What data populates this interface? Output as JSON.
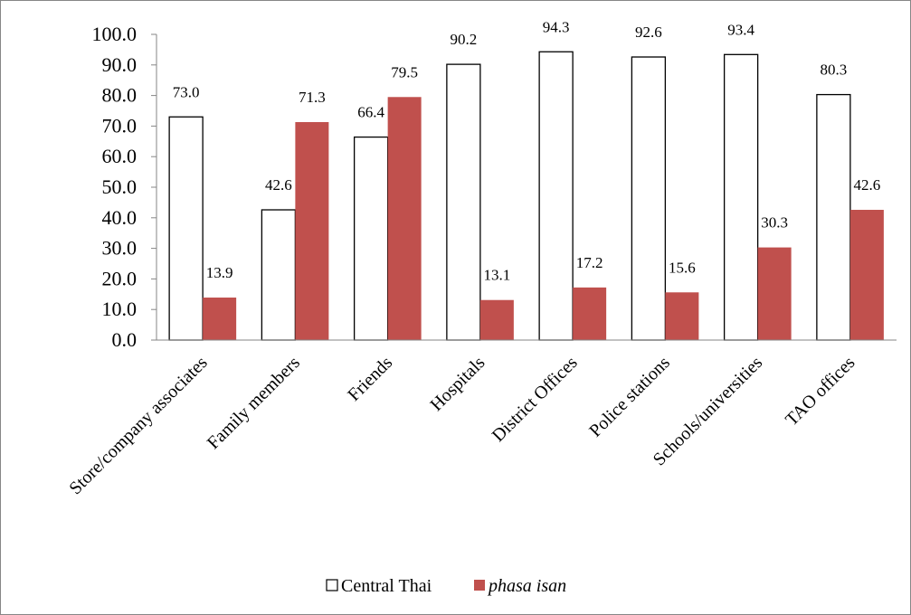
{
  "chart_data": {
    "type": "bar",
    "title": "",
    "xlabel": "",
    "ylabel": "",
    "ylim": [
      0,
      100
    ],
    "y_ticks": [
      "0.0",
      "10.0",
      "20.0",
      "30.0",
      "40.0",
      "50.0",
      "60.0",
      "70.0",
      "80.0",
      "90.0",
      "100.0"
    ],
    "grid": false,
    "legend_position": "bottom",
    "categories": [
      "Store/company associates",
      "Family members",
      "Friends",
      "Hospitals",
      "District Offices",
      "Police stations",
      "Schools/universities",
      "TAO offices"
    ],
    "series": [
      {
        "name": "Central Thai",
        "color": "#ffffff",
        "values": [
          73.0,
          42.6,
          66.4,
          90.2,
          94.3,
          92.6,
          93.4,
          80.3
        ],
        "labels": [
          "73.0",
          "42.6",
          "66.4",
          "90.2",
          "94.3",
          "92.6",
          "93.4",
          "80.3"
        ]
      },
      {
        "name": "phasa isan",
        "color": "#c0504d",
        "values": [
          13.9,
          71.3,
          79.5,
          13.1,
          17.2,
          15.6,
          30.3,
          42.6
        ],
        "labels": [
          "13.9",
          "71.3",
          "79.5",
          "13.1",
          "17.2",
          "15.6",
          "30.3",
          "42.6"
        ]
      }
    ]
  }
}
